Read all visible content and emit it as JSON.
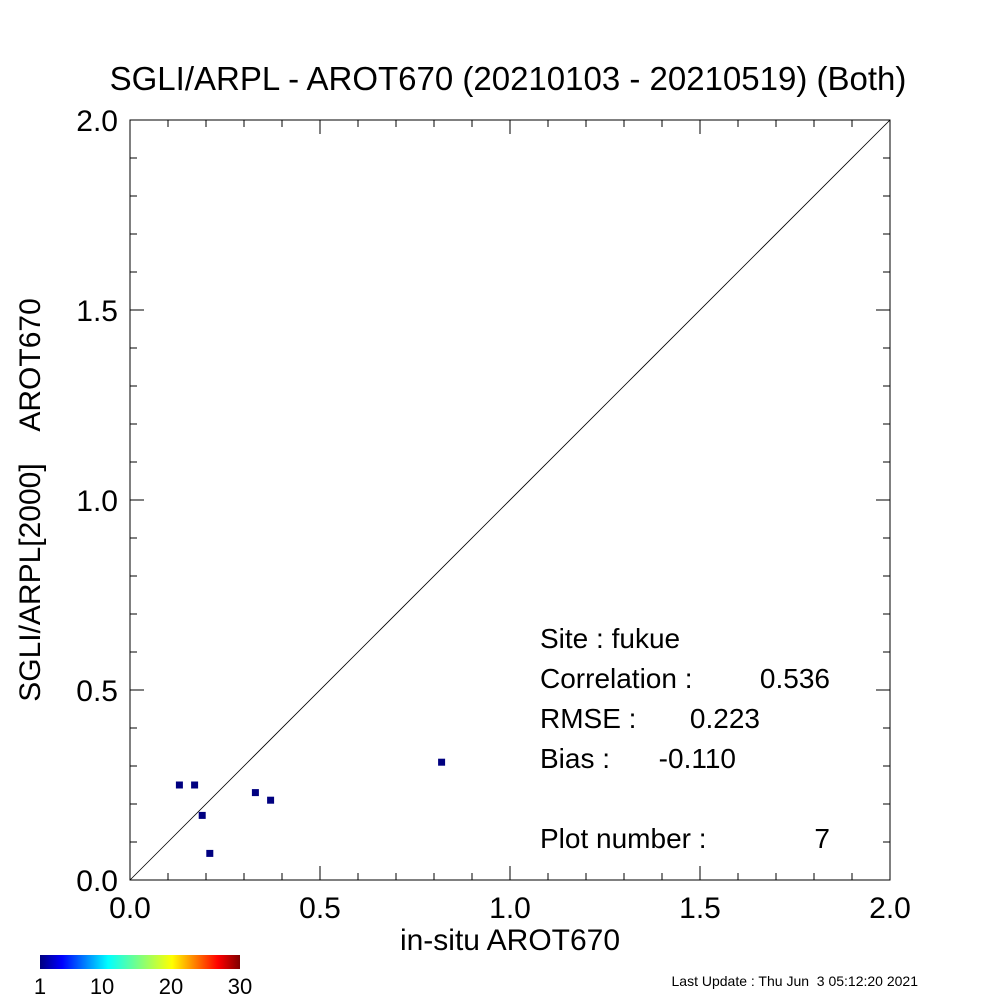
{
  "chart_data": {
    "type": "scatter",
    "title": "SGLI/ARPL - AROT670 (20210103 - 20210519) (Both)",
    "xlabel": "in-situ AROT670",
    "ylabel": "SGLI/ARPL[2000]    AROT670",
    "xlim": [
      0.0,
      2.0
    ],
    "ylim": [
      0.0,
      2.0
    ],
    "xticks": [
      "0.0",
      "0.5",
      "1.0",
      "1.5",
      "2.0"
    ],
    "yticks": [
      "0.0",
      "0.5",
      "1.0",
      "1.5",
      "2.0"
    ],
    "grid": false,
    "reference_line": "1:1",
    "points": [
      {
        "x": 0.13,
        "y": 0.25
      },
      {
        "x": 0.17,
        "y": 0.25
      },
      {
        "x": 0.19,
        "y": 0.17
      },
      {
        "x": 0.21,
        "y": 0.07
      },
      {
        "x": 0.33,
        "y": 0.23
      },
      {
        "x": 0.37,
        "y": 0.21
      },
      {
        "x": 0.82,
        "y": 0.31
      }
    ],
    "point_color": "#000080",
    "stats": {
      "site": "Site : fukue",
      "correlation_label": "Correlation :",
      "correlation": "0.536",
      "rmse_label": "RMSE :",
      "rmse": "0.223",
      "bias_label": "Bias :",
      "bias": "-0.110",
      "plot_number_label": "Plot number :",
      "plot_number": "7"
    },
    "colorbar": {
      "colormap": "jet",
      "tick_labels": [
        "1",
        "10",
        "20",
        "30"
      ],
      "tick_values": [
        1,
        10,
        20,
        30
      ],
      "range": [
        1,
        30
      ]
    }
  },
  "footer": {
    "last_update": "Last Update : Thu Jun  3 05:12:20 2021"
  }
}
